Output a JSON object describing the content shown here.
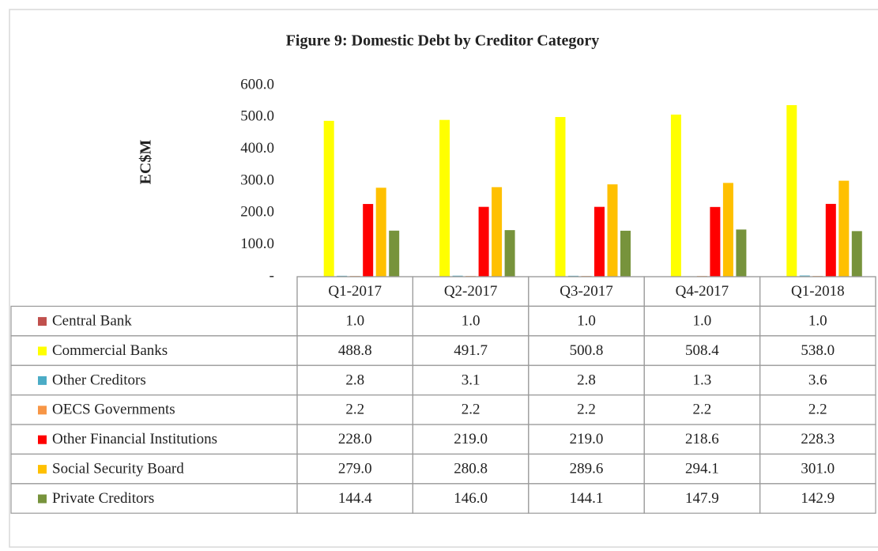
{
  "chart_data": {
    "type": "bar",
    "title": "Figure 9: Domestic Debt by Creditor Category",
    "y_label": "EC$M",
    "categories": [
      "Q1-2017",
      "Q2-2017",
      "Q3-2017",
      "Q4-2017",
      "Q1-2018"
    ],
    "ylim": [
      0,
      600
    ],
    "yticks": [
      {
        "value": 0,
        "label": "-"
      },
      {
        "value": 100,
        "label": "100.0"
      },
      {
        "value": 200,
        "label": "200.0"
      },
      {
        "value": 300,
        "label": "300.0"
      },
      {
        "value": 400,
        "label": "400.0"
      },
      {
        "value": 500,
        "label": "500.0"
      },
      {
        "value": 600,
        "label": "600.0"
      }
    ],
    "grid": false,
    "series": [
      {
        "name": "Central Bank",
        "color": "#c0504d",
        "values": [
          1.0,
          1.0,
          1.0,
          1.0,
          1.0
        ],
        "value_labels": [
          "1.0",
          "1.0",
          "1.0",
          "1.0",
          "1.0"
        ]
      },
      {
        "name": "Commercial Banks",
        "color": "#ffff00",
        "values": [
          488.8,
          491.7,
          500.8,
          508.4,
          538.0
        ],
        "value_labels": [
          "488.8",
          "491.7",
          "500.8",
          "508.4",
          "538.0"
        ]
      },
      {
        "name": "Other Creditors",
        "color": "#4bacc6",
        "values": [
          2.8,
          3.1,
          2.8,
          1.3,
          3.6
        ],
        "value_labels": [
          "2.8",
          "3.1",
          "2.8",
          "1.3",
          "3.6"
        ]
      },
      {
        "name": "OECS Governments",
        "color": "#f79646",
        "values": [
          2.2,
          2.2,
          2.2,
          2.2,
          2.2
        ],
        "value_labels": [
          "2.2",
          "2.2",
          "2.2",
          "2.2",
          "2.2"
        ]
      },
      {
        "name": "Other Financial Institutions",
        "color": "#ff0000",
        "values": [
          228.0,
          219.0,
          219.0,
          218.6,
          228.3
        ],
        "value_labels": [
          "228.0",
          "219.0",
          "219.0",
          "218.6",
          "228.3"
        ]
      },
      {
        "name": "Social Security Board",
        "color": "#ffc000",
        "values": [
          279.0,
          280.8,
          289.6,
          294.1,
          301.0
        ],
        "value_labels": [
          "279.0",
          "280.8",
          "289.6",
          "294.1",
          "301.0"
        ]
      },
      {
        "name": "Private Creditors",
        "color": "#77933c",
        "values": [
          144.4,
          146.0,
          144.1,
          147.9,
          142.9
        ],
        "value_labels": [
          "144.4",
          "146.0",
          "144.1",
          "147.9",
          "142.9"
        ]
      }
    ]
  }
}
